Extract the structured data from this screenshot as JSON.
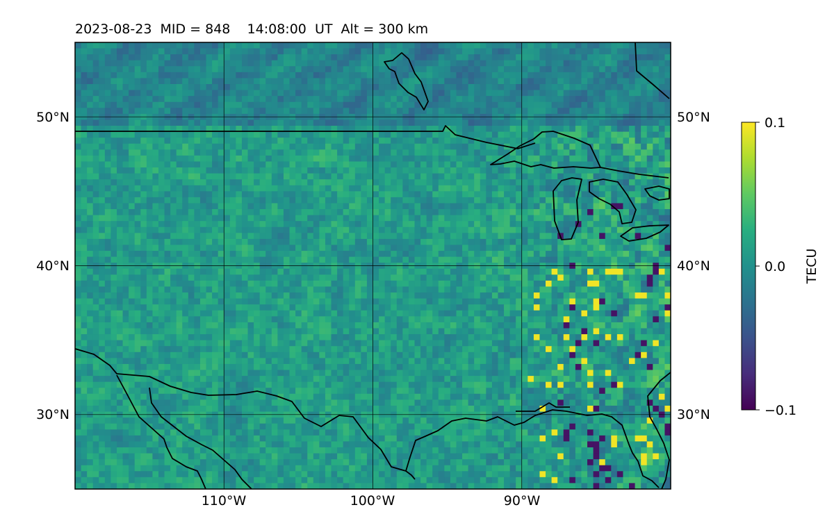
{
  "title": "2023-08-23  MID = 848    14:08:00  UT  Alt = 300 km",
  "map": {
    "projection": "equirectangular",
    "lon_range": [
      -120,
      -80
    ],
    "lat_range": [
      25,
      55
    ],
    "grid": true,
    "lat_ticks": [
      {
        "value": 50,
        "label": "50°N"
      },
      {
        "value": 40,
        "label": "40°N"
      },
      {
        "value": 30,
        "label": "30°N"
      }
    ],
    "lon_ticks": [
      {
        "value": -110,
        "label": "110°W"
      },
      {
        "value": -100,
        "label": "100°W"
      },
      {
        "value": -90,
        "label": "90°W"
      }
    ],
    "field": "detrended total electron content",
    "colormap": "viridis",
    "coastline_color": "#000000"
  },
  "colorbar": {
    "label": "TECU",
    "min": -0.1,
    "max": 0.1,
    "ticks": [
      {
        "value": 0.1,
        "label": "0.1"
      },
      {
        "value": 0.0,
        "label": "0.0"
      },
      {
        "value": -0.1,
        "label": "−0.1"
      }
    ],
    "colormap": "viridis"
  }
}
